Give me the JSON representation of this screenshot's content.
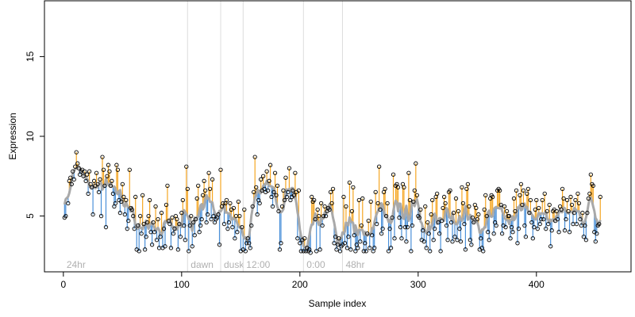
{
  "chart_data": {
    "type": "scatter",
    "title": "",
    "xlabel": "Sample index",
    "ylabel": "Expression",
    "xlim": [
      -16,
      480
    ],
    "ylim": [
      1.5,
      18.5
    ],
    "x_ticks": [
      0,
      100,
      200,
      300,
      400
    ],
    "y_ticks": [
      5,
      10,
      15
    ],
    "grid": false,
    "legend": "none",
    "colors": {
      "residual_above": "#f5a623",
      "residual_below": "#4a90d9",
      "fitted_line": "#a9a9a9",
      "points": "#000000",
      "annotation_lines": "#dcdcdc",
      "annotation_text": "#b0b0b0"
    },
    "annotations": [
      {
        "label": "24hr",
        "x": 0
      },
      {
        "label": "dawn",
        "x": 105
      },
      {
        "label": "dusk",
        "x": 133
      },
      {
        "label": "12:00",
        "x": 152
      },
      {
        "label": "0:00",
        "x": 203
      },
      {
        "label": "48hr",
        "x": 236
      }
    ],
    "points": [
      [
        1,
        4.9
      ],
      [
        2,
        5.0
      ],
      [
        4,
        5.8
      ],
      [
        5,
        7.2
      ],
      [
        6,
        7.4
      ],
      [
        7,
        7.0
      ],
      [
        8,
        7.8
      ],
      [
        9,
        7.3
      ],
      [
        10,
        8.1
      ],
      [
        11,
        9.0
      ],
      [
        12,
        8.3
      ],
      [
        13,
        8.0
      ],
      [
        14,
        7.6
      ],
      [
        15,
        7.8
      ],
      [
        16,
        7.9
      ],
      [
        17,
        7.5
      ],
      [
        18,
        7.8
      ],
      [
        19,
        7.2
      ],
      [
        20,
        7.6
      ],
      [
        21,
        6.4
      ],
      [
        22,
        7.8
      ],
      [
        23,
        7.0
      ],
      [
        24,
        6.8
      ],
      [
        25,
        5.1
      ],
      [
        26,
        7.2
      ],
      [
        27,
        6.9
      ],
      [
        28,
        7.7
      ],
      [
        29,
        7.0
      ],
      [
        30,
        6.5
      ],
      [
        31,
        7.3
      ],
      [
        32,
        5.0
      ],
      [
        33,
        8.7
      ],
      [
        34,
        7.9
      ],
      [
        35,
        6.9
      ],
      [
        36,
        4.3
      ],
      [
        37,
        7.5
      ],
      [
        38,
        8.2
      ],
      [
        39,
        7.8
      ],
      [
        40,
        6.9
      ],
      [
        41,
        7.2
      ],
      [
        42,
        6.4
      ],
      [
        43,
        5.6
      ],
      [
        44,
        5.8
      ],
      [
        45,
        8.2
      ],
      [
        46,
        7.9
      ],
      [
        47,
        6.0
      ],
      [
        48,
        5.2
      ],
      [
        49,
        5.9
      ],
      [
        50,
        7.0
      ],
      [
        51,
        6.2
      ],
      [
        52,
        5.1
      ],
      [
        53,
        6.0
      ],
      [
        54,
        4.2
      ],
      [
        55,
        4.7
      ],
      [
        56,
        7.9
      ],
      [
        57,
        5.5
      ],
      [
        58,
        5.4
      ],
      [
        59,
        5.0
      ],
      [
        60,
        4.2
      ],
      [
        61,
        6.2
      ],
      [
        62,
        2.9
      ],
      [
        63,
        4.4
      ],
      [
        64,
        2.8
      ],
      [
        65,
        5.0
      ],
      [
        66,
        3.9
      ],
      [
        67,
        6.3
      ],
      [
        68,
        4.5
      ],
      [
        69,
        2.9
      ],
      [
        70,
        3.7
      ],
      [
        71,
        4.6
      ],
      [
        72,
        5.0
      ],
      [
        73,
        6.0
      ],
      [
        74,
        4.0
      ],
      [
        75,
        3.2
      ],
      [
        76,
        4.6
      ],
      [
        77,
        4.0
      ],
      [
        78,
        5.6
      ],
      [
        79,
        3.5
      ],
      [
        80,
        4.8
      ],
      [
        81,
        3.0
      ],
      [
        82,
        3.7
      ],
      [
        83,
        5.2
      ],
      [
        84,
        3.0
      ],
      [
        85,
        4.2
      ],
      [
        86,
        3.1
      ],
      [
        87,
        5.7
      ],
      [
        88,
        6.9
      ],
      [
        89,
        4.7
      ],
      [
        90,
        4.5
      ],
      [
        91,
        3.0
      ],
      [
        92,
        4.9
      ],
      [
        93,
        3.9
      ],
      [
        94,
        4.2
      ],
      [
        95,
        5.0
      ],
      [
        96,
        4.8
      ],
      [
        97,
        2.9
      ],
      [
        98,
        4.5
      ],
      [
        99,
        3.7
      ],
      [
        100,
        5.2
      ],
      [
        101,
        6.0
      ],
      [
        102,
        4.4
      ],
      [
        103,
        3.5
      ],
      [
        104,
        8.1
      ],
      [
        105,
        6.7
      ],
      [
        106,
        2.8
      ],
      [
        107,
        4.4
      ],
      [
        108,
        5.0
      ],
      [
        109,
        3.1
      ],
      [
        110,
        4.6
      ],
      [
        111,
        3.8
      ],
      [
        112,
        4.8
      ],
      [
        113,
        6.1
      ],
      [
        114,
        6.9
      ],
      [
        115,
        4.0
      ],
      [
        116,
        4.4
      ],
      [
        117,
        4.8
      ],
      [
        118,
        6.3
      ],
      [
        119,
        7.2
      ],
      [
        120,
        6.6
      ],
      [
        121,
        4.6
      ],
      [
        122,
        5.1
      ],
      [
        123,
        7.7
      ],
      [
        124,
        6.7
      ],
      [
        125,
        4.8
      ],
      [
        126,
        7.3
      ],
      [
        127,
        5.0
      ],
      [
        128,
        4.6
      ],
      [
        129,
        4.8
      ],
      [
        130,
        4.9
      ],
      [
        131,
        5.1
      ],
      [
        132,
        3.2
      ],
      [
        133,
        7.9
      ],
      [
        134,
        5.6
      ],
      [
        135,
        5.8
      ],
      [
        136,
        4.5
      ],
      [
        137,
        5.8
      ],
      [
        138,
        6.0
      ],
      [
        139,
        4.2
      ],
      [
        140,
        4.6
      ],
      [
        141,
        5.8
      ],
      [
        142,
        5.4
      ],
      [
        143,
        4.3
      ],
      [
        144,
        5.5
      ],
      [
        145,
        3.6
      ],
      [
        146,
        5.0
      ],
      [
        147,
        4.0
      ],
      [
        148,
        5.9
      ],
      [
        149,
        5.0
      ],
      [
        150,
        2.8
      ],
      [
        151,
        4.3
      ],
      [
        152,
        2.9
      ],
      [
        153,
        5.4
      ],
      [
        154,
        2.8
      ],
      [
        155,
        3.3
      ],
      [
        156,
        3.6
      ],
      [
        157,
        3.3
      ],
      [
        158,
        3.0
      ],
      [
        159,
        4.4
      ],
      [
        160,
        5.6
      ],
      [
        161,
        6.5
      ],
      [
        162,
        8.7
      ],
      [
        163,
        6.8
      ],
      [
        164,
        5.1
      ],
      [
        165,
        6.0
      ],
      [
        166,
        5.8
      ],
      [
        167,
        7.3
      ],
      [
        168,
        6.6
      ],
      [
        169,
        7.5
      ],
      [
        170,
        6.7
      ],
      [
        171,
        6.5
      ],
      [
        172,
        7.8
      ],
      [
        173,
        6.6
      ],
      [
        174,
        7.2
      ],
      [
        175,
        8.2
      ],
      [
        176,
        6.2
      ],
      [
        177,
        5.6
      ],
      [
        178,
        6.5
      ],
      [
        179,
        7.7
      ],
      [
        180,
        6.3
      ],
      [
        181,
        6.9
      ],
      [
        182,
        5.3
      ],
      [
        183,
        2.9
      ],
      [
        184,
        3.3
      ],
      [
        185,
        5.6
      ],
      [
        186,
        6.6
      ],
      [
        187,
        6.0
      ],
      [
        188,
        7.4
      ],
      [
        189,
        6.2
      ],
      [
        190,
        6.5
      ],
      [
        191,
        8.0
      ],
      [
        192,
        6.0
      ],
      [
        193,
        6.2
      ],
      [
        194,
        6.6
      ],
      [
        195,
        6.3
      ],
      [
        196,
        7.7
      ],
      [
        197,
        6.5
      ],
      [
        198,
        3.6
      ],
      [
        199,
        6.6
      ],
      [
        200,
        3.3
      ],
      [
        201,
        2.8
      ],
      [
        202,
        3.5
      ],
      [
        203,
        2.8
      ],
      [
        204,
        3.6
      ],
      [
        205,
        2.8
      ],
      [
        206,
        3.0
      ],
      [
        207,
        2.8
      ],
      [
        208,
        2.9
      ],
      [
        209,
        2.7
      ],
      [
        210,
        6.2
      ],
      [
        211,
        5.9
      ],
      [
        212,
        6.0
      ],
      [
        213,
        4.8
      ],
      [
        214,
        2.8
      ],
      [
        215,
        5.4
      ],
      [
        216,
        5.0
      ],
      [
        217,
        2.9
      ],
      [
        218,
        5.8
      ],
      [
        219,
        4.4
      ],
      [
        220,
        5.0
      ],
      [
        221,
        5.6
      ],
      [
        222,
        5.0
      ],
      [
        223,
        5.3
      ],
      [
        224,
        5.5
      ],
      [
        225,
        5.4
      ],
      [
        226,
        6.5
      ],
      [
        227,
        5.8
      ],
      [
        228,
        6.7
      ],
      [
        229,
        3.3
      ],
      [
        230,
        3.7
      ],
      [
        231,
        2.9
      ],
      [
        232,
        3.2
      ],
      [
        233,
        3.6
      ],
      [
        234,
        2.8
      ],
      [
        235,
        3.1
      ],
      [
        236,
        3.2
      ],
      [
        237,
        6.2
      ],
      [
        238,
        3.3
      ],
      [
        239,
        5.6
      ],
      [
        240,
        3.0
      ],
      [
        241,
        3.7
      ],
      [
        242,
        7.1
      ],
      [
        243,
        2.9
      ],
      [
        244,
        5.3
      ],
      [
        245,
        6.8
      ],
      [
        246,
        3.8
      ],
      [
        247,
        2.8
      ],
      [
        248,
        3.2
      ],
      [
        249,
        3.0
      ],
      [
        250,
        6.0
      ],
      [
        251,
        3.4
      ],
      [
        252,
        4.4
      ],
      [
        253,
        6.1
      ],
      [
        254,
        2.8
      ],
      [
        255,
        3.3
      ],
      [
        256,
        2.8
      ],
      [
        257,
        3.9
      ],
      [
        258,
        4.7
      ],
      [
        259,
        3.0
      ],
      [
        260,
        5.9
      ],
      [
        261,
        3.8
      ],
      [
        262,
        2.8
      ],
      [
        263,
        3.0
      ],
      [
        264,
        6.5
      ],
      [
        265,
        4.5
      ],
      [
        266,
        5.8
      ],
      [
        267,
        8.1
      ],
      [
        268,
        5.4
      ],
      [
        269,
        3.9
      ],
      [
        270,
        4.2
      ],
      [
        271,
        6.5
      ],
      [
        272,
        6.7
      ],
      [
        273,
        5.0
      ],
      [
        274,
        5.8
      ],
      [
        275,
        2.8
      ],
      [
        276,
        4.2
      ],
      [
        277,
        3.0
      ],
      [
        278,
        4.9
      ],
      [
        279,
        7.6
      ],
      [
        280,
        3.6
      ],
      [
        281,
        6.9
      ],
      [
        282,
        7.0
      ],
      [
        283,
        6.8
      ],
      [
        284,
        4.9
      ],
      [
        285,
        4.3
      ],
      [
        286,
        3.6
      ],
      [
        287,
        7.0
      ],
      [
        288,
        6.8
      ],
      [
        289,
        4.3
      ],
      [
        290,
        3.4
      ],
      [
        291,
        4.3
      ],
      [
        292,
        7.7
      ],
      [
        293,
        6.0
      ],
      [
        294,
        2.8
      ],
      [
        295,
        4.4
      ],
      [
        296,
        5.9
      ],
      [
        297,
        6.6
      ],
      [
        298,
        8.3
      ],
      [
        299,
        6.3
      ],
      [
        300,
        5.0
      ],
      [
        301,
        4.9
      ],
      [
        302,
        5.4
      ],
      [
        303,
        3.5
      ],
      [
        304,
        4.1
      ],
      [
        305,
        3.4
      ],
      [
        306,
        5.6
      ],
      [
        307,
        3.0
      ],
      [
        308,
        4.6
      ],
      [
        309,
        3.9
      ],
      [
        310,
        2.8
      ],
      [
        311,
        5.1
      ],
      [
        312,
        6.0
      ],
      [
        313,
        3.5
      ],
      [
        314,
        4.2
      ],
      [
        315,
        6.2
      ],
      [
        316,
        6.4
      ],
      [
        317,
        4.6
      ],
      [
        318,
        3.9
      ],
      [
        319,
        2.8
      ],
      [
        320,
        4.7
      ],
      [
        321,
        5.5
      ],
      [
        322,
        6.2
      ],
      [
        323,
        5.8
      ],
      [
        324,
        4.4
      ],
      [
        325,
        3.5
      ],
      [
        326,
        6.5
      ],
      [
        327,
        6.6
      ],
      [
        328,
        4.6
      ],
      [
        329,
        3.4
      ],
      [
        330,
        5.2
      ],
      [
        331,
        3.7
      ],
      [
        332,
        6.1
      ],
      [
        333,
        3.5
      ],
      [
        334,
        5.3
      ],
      [
        335,
        4.2
      ],
      [
        336,
        3.4
      ],
      [
        337,
        6.8
      ],
      [
        338,
        5.8
      ],
      [
        339,
        4.5
      ],
      [
        340,
        2.9
      ],
      [
        341,
        6.7
      ],
      [
        342,
        7.0
      ],
      [
        343,
        5.6
      ],
      [
        344,
        3.5
      ],
      [
        345,
        3.2
      ],
      [
        346,
        4.9
      ],
      [
        347,
        4.6
      ],
      [
        348,
        5.7
      ],
      [
        349,
        5.5
      ],
      [
        350,
        4.8
      ],
      [
        351,
        5.1
      ],
      [
        352,
        2.9
      ],
      [
        353,
        3.6
      ],
      [
        354,
        3.0
      ],
      [
        355,
        2.8
      ],
      [
        356,
        5.4
      ],
      [
        357,
        6.3
      ],
      [
        358,
        5.0
      ],
      [
        359,
        4.0
      ],
      [
        360,
        3.5
      ],
      [
        361,
        6.1
      ],
      [
        362,
        6.3
      ],
      [
        363,
        6.2
      ],
      [
        364,
        3.9
      ],
      [
        365,
        4.6
      ],
      [
        366,
        4.4
      ],
      [
        367,
        6.6
      ],
      [
        368,
        6.7
      ],
      [
        369,
        6.6
      ],
      [
        370,
        5.7
      ],
      [
        371,
        3.9
      ],
      [
        372,
        4.4
      ],
      [
        373,
        5.6
      ],
      [
        374,
        4.3
      ],
      [
        375,
        5.3
      ],
      [
        376,
        5.0
      ],
      [
        377,
        5.0
      ],
      [
        378,
        3.6
      ],
      [
        379,
        4.3
      ],
      [
        380,
        4.0
      ],
      [
        381,
        6.1
      ],
      [
        382,
        5.3
      ],
      [
        383,
        6.6
      ],
      [
        384,
        3.3
      ],
      [
        385,
        4.2
      ],
      [
        386,
        6.3
      ],
      [
        387,
        7.0
      ],
      [
        388,
        5.7
      ],
      [
        389,
        6.6
      ],
      [
        390,
        4.4
      ],
      [
        391,
        3.7
      ],
      [
        392,
        6.4
      ],
      [
        393,
        6.7
      ],
      [
        394,
        5.2
      ],
      [
        395,
        6.0
      ],
      [
        396,
        4.6
      ],
      [
        397,
        3.6
      ],
      [
        398,
        4.3
      ],
      [
        399,
        5.4
      ],
      [
        400,
        6.0
      ],
      [
        401,
        4.2
      ],
      [
        402,
        5.5
      ],
      [
        403,
        4.5
      ],
      [
        404,
        4.8
      ],
      [
        405,
        6.0
      ],
      [
        406,
        4.8
      ],
      [
        407,
        6.4
      ],
      [
        408,
        4.2
      ],
      [
        409,
        5.3
      ],
      [
        410,
        4.5
      ],
      [
        411,
        5.7
      ],
      [
        412,
        3.1
      ],
      [
        413,
        4.1
      ],
      [
        414,
        5.3
      ],
      [
        415,
        5.4
      ],
      [
        416,
        4.7
      ],
      [
        417,
        5.3
      ],
      [
        418,
        4.8
      ],
      [
        419,
        4.0
      ],
      [
        420,
        5.6
      ],
      [
        421,
        5.4
      ],
      [
        422,
        6.7
      ],
      [
        423,
        6.1
      ],
      [
        424,
        4.1
      ],
      [
        425,
        4.8
      ],
      [
        426,
        6.0
      ],
      [
        427,
        5.3
      ],
      [
        428,
        4.0
      ],
      [
        429,
        6.2
      ],
      [
        430,
        5.7
      ],
      [
        431,
        4.5
      ],
      [
        432,
        5.2
      ],
      [
        433,
        6.0
      ],
      [
        434,
        4.5
      ],
      [
        435,
        6.4
      ],
      [
        436,
        5.8
      ],
      [
        437,
        4.8
      ],
      [
        438,
        4.4
      ],
      [
        439,
        5.2
      ],
      [
        440,
        3.7
      ],
      [
        441,
        4.4
      ],
      [
        442,
        3.5
      ],
      [
        443,
        5.2
      ],
      [
        444,
        6.1
      ],
      [
        445,
        6.4
      ],
      [
        446,
        7.6
      ],
      [
        447,
        7.0
      ],
      [
        448,
        6.9
      ],
      [
        449,
        4.0
      ],
      [
        450,
        3.4
      ],
      [
        451,
        3.9
      ],
      [
        452,
        4.4
      ],
      [
        453,
        4.5
      ],
      [
        454,
        6.2
      ]
    ]
  }
}
